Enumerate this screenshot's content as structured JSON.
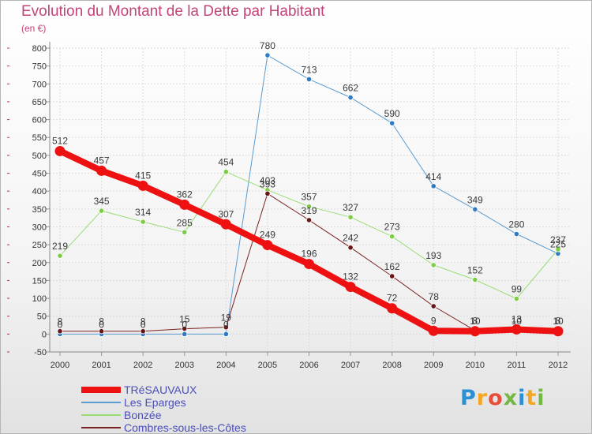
{
  "chart_data": {
    "type": "line",
    "title": "Evolution du Montant de la Dette par Habitant",
    "subtitle": "(en €)",
    "xlabel": "",
    "ylabel": "",
    "ylim": [
      -50,
      800
    ],
    "yticks": [
      -50,
      0,
      50,
      100,
      150,
      200,
      250,
      300,
      350,
      400,
      450,
      500,
      550,
      600,
      650,
      700,
      750,
      800
    ],
    "categories": [
      "2000",
      "2001",
      "2002",
      "2003",
      "2004",
      "2005",
      "2006",
      "2007",
      "2008",
      "2009",
      "2010",
      "2011",
      "2012"
    ],
    "grid": true,
    "series": [
      {
        "name": "TRéSAUVAUX",
        "color": "#ee1111",
        "marker": "#ee1111",
        "values": [
          512,
          457,
          415,
          362,
          307,
          249,
          196,
          132,
          72,
          9,
          8,
          13,
          8
        ],
        "labels": [
          "512",
          "457",
          "415",
          "362",
          "307",
          "249",
          "196",
          "132",
          "72",
          "9",
          "8",
          "13",
          "8"
        ]
      },
      {
        "name": "Les Eparges",
        "color": "#5a9bd0",
        "marker": "#2e7bc4",
        "values": [
          0,
          0,
          0,
          0,
          0,
          780,
          713,
          662,
          590,
          414,
          349,
          280,
          225
        ],
        "labels": [
          "0",
          "0",
          "0",
          "0",
          "0",
          "780",
          "713",
          "662",
          "590",
          "414",
          "349",
          "280",
          "225"
        ]
      },
      {
        "name": "Bonzée",
        "color": "#99dd77",
        "marker": "#7ccc44",
        "values": [
          219,
          345,
          314,
          285,
          454,
          403,
          357,
          327,
          273,
          193,
          152,
          99,
          237
        ],
        "labels": [
          "219",
          "345",
          "314",
          "285",
          "454",
          "403",
          "357",
          "327",
          "273",
          "193",
          "152",
          "99",
          "237"
        ]
      },
      {
        "name": "Combres-sous-les-Côtes",
        "color": "#7a2222",
        "marker": "#6a1515",
        "values": [
          8,
          8,
          8,
          15,
          19,
          393,
          319,
          242,
          162,
          78,
          10,
          10,
          10
        ],
        "labels": [
          "8",
          "8",
          "8",
          "15",
          "19",
          "393",
          "319",
          "242",
          "162",
          "78",
          "10",
          "10",
          "10"
        ]
      }
    ]
  },
  "logo": {
    "text": "Proxiti",
    "letters": [
      "P",
      "r",
      "o",
      "x",
      "i",
      "t",
      "i"
    ]
  }
}
